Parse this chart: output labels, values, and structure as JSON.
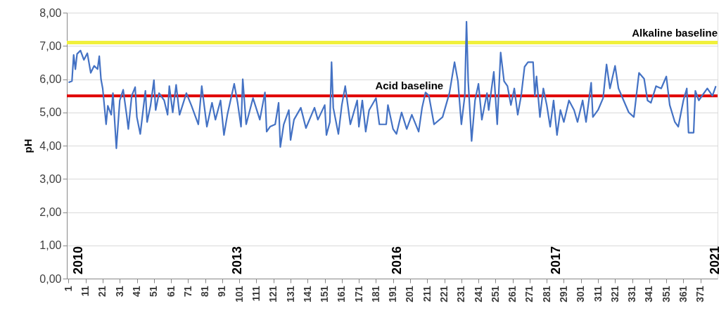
{
  "chart_data": {
    "type": "line",
    "ylabel": "pH",
    "xlim": [
      0,
      381
    ],
    "xticks": [
      1,
      11,
      21,
      31,
      41,
      51,
      61,
      71,
      81,
      91,
      101,
      111,
      121,
      131,
      141,
      151,
      161,
      171,
      181,
      191,
      201,
      211,
      221,
      231,
      241,
      251,
      261,
      271,
      281,
      291,
      301,
      311,
      321,
      331,
      341,
      351,
      361,
      371
    ],
    "ylim": [
      0,
      8
    ],
    "yticks": [
      {
        "value": 0,
        "label": "0,00"
      },
      {
        "value": 1,
        "label": "1,00"
      },
      {
        "value": 2,
        "label": "2,00"
      },
      {
        "value": 3,
        "label": "3,00"
      },
      {
        "value": 4,
        "label": "4,00"
      },
      {
        "value": 5,
        "label": "5,00"
      },
      {
        "value": 6,
        "label": "6,00"
      },
      {
        "value": 7,
        "label": "7,00"
      },
      {
        "value": 8,
        "label": "8,00"
      }
    ],
    "grid": "y",
    "marker": "none",
    "line_style": "solid",
    "series": [
      {
        "color": "#4472c4",
        "x": [
          1,
          3,
          4,
          5,
          6,
          8,
          10,
          12,
          14,
          16,
          18,
          19,
          20,
          21,
          23,
          24,
          26,
          27,
          29,
          31,
          33,
          35,
          36,
          38,
          40,
          41,
          43,
          46,
          47,
          49,
          51,
          52,
          54,
          57,
          59,
          60,
          62,
          64,
          66,
          70,
          73,
          77,
          79,
          82,
          85,
          87,
          90,
          92,
          94,
          98,
          100,
          102,
          103,
          105,
          109,
          113,
          116,
          117,
          119,
          122,
          124,
          125,
          127,
          130,
          131,
          133,
          137,
          140,
          145,
          147,
          151,
          152,
          154,
          155,
          156,
          159,
          161,
          163,
          166,
          168,
          170,
          171,
          173,
          175,
          177,
          181,
          183,
          187,
          188,
          191,
          193,
          196,
          199,
          202,
          206,
          208,
          210,
          212,
          215,
          220,
          224,
          227,
          229,
          231,
          233,
          234,
          235,
          237,
          239,
          241,
          243,
          246,
          247,
          250,
          252,
          254,
          256,
          258,
          260,
          262,
          264,
          266,
          268,
          270,
          273,
          274,
          275,
          277,
          279,
          281,
          283,
          285,
          287,
          289,
          291,
          294,
          297,
          299,
          302,
          304,
          307,
          308,
          311,
          314,
          316,
          318,
          321,
          323,
          326,
          329,
          332,
          335,
          338,
          340,
          342,
          345,
          348,
          351,
          353,
          356,
          358,
          361,
          363,
          364,
          367,
          368,
          370,
          375,
          378,
          380
        ],
        "values": [
          5.9,
          5.94,
          6.73,
          6.3,
          6.76,
          6.86,
          6.58,
          6.78,
          6.19,
          6.4,
          6.3,
          6.69,
          6.0,
          5.72,
          4.64,
          5.2,
          4.93,
          5.58,
          3.92,
          5.36,
          5.68,
          4.93,
          4.5,
          5.5,
          5.76,
          4.86,
          4.35,
          5.65,
          4.71,
          5.2,
          5.97,
          5.07,
          5.58,
          5.36,
          4.93,
          5.79,
          5.0,
          5.83,
          4.93,
          5.58,
          5.2,
          4.64,
          5.79,
          4.57,
          5.29,
          4.78,
          5.36,
          4.32,
          4.93,
          5.86,
          5.29,
          4.57,
          6.0,
          4.64,
          5.43,
          4.78,
          5.6,
          4.42,
          4.57,
          4.64,
          5.29,
          3.96,
          4.64,
          5.07,
          4.17,
          4.78,
          5.14,
          4.53,
          5.14,
          4.78,
          5.22,
          4.32,
          4.71,
          6.51,
          5.14,
          4.35,
          5.22,
          5.79,
          4.64,
          5.0,
          5.36,
          4.57,
          5.36,
          4.42,
          5.07,
          5.43,
          4.64,
          4.64,
          5.22,
          4.5,
          4.35,
          5.0,
          4.5,
          4.93,
          4.42,
          5.14,
          5.6,
          5.5,
          4.64,
          4.86,
          5.58,
          6.51,
          5.94,
          4.64,
          5.5,
          7.73,
          5.94,
          4.14,
          5.36,
          5.86,
          4.78,
          5.58,
          5.07,
          6.22,
          4.64,
          6.8,
          5.94,
          5.79,
          5.22,
          5.72,
          4.93,
          5.5,
          6.37,
          6.51,
          6.51,
          5.5,
          6.08,
          4.86,
          5.72,
          5.22,
          4.57,
          5.36,
          4.32,
          5.07,
          4.71,
          5.36,
          5.07,
          4.71,
          5.36,
          4.71,
          5.89,
          4.86,
          5.07,
          5.43,
          6.44,
          5.72,
          6.4,
          5.72,
          5.36,
          5.0,
          4.86,
          6.19,
          6.01,
          5.36,
          5.29,
          5.79,
          5.72,
          6.08,
          5.22,
          4.71,
          4.57,
          5.36,
          5.72,
          4.39,
          4.39,
          5.65,
          5.36,
          5.72,
          5.5,
          5.79
        ]
      }
    ],
    "ref_lines": [
      {
        "axis": "y",
        "value": 7.1,
        "label": "Alkaline baseline",
        "color": "#f0f03c"
      },
      {
        "axis": "y",
        "value": 5.5,
        "label": "Acid baseline",
        "color": "#e00000"
      }
    ],
    "annotations": [
      "2010",
      "2013",
      "2016",
      "2017",
      "2021"
    ]
  }
}
